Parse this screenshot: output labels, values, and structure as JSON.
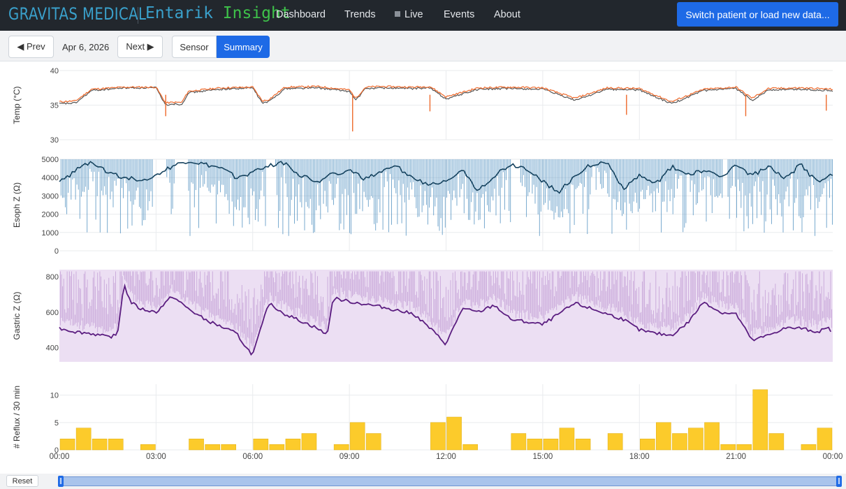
{
  "brand": {
    "name": "GRAVITAS MEDICAL",
    "product_part1": "Entarik",
    "product_part2": "Insight"
  },
  "nav": {
    "items": [
      {
        "label": "Dashboard"
      },
      {
        "label": "Trends"
      },
      {
        "label": "Live"
      },
      {
        "label": "Events"
      },
      {
        "label": "About"
      }
    ],
    "switch_button": "Switch patient or load new data..."
  },
  "toolbar": {
    "prev_label": "◀ Prev",
    "date": "Apr 6, 2026",
    "next_label": "Next ▶",
    "view_tabs": [
      {
        "label": "Sensor",
        "active": false
      },
      {
        "label": "Summary",
        "active": true
      }
    ]
  },
  "bottom": {
    "reset_label": "Reset",
    "range_start": "00:00",
    "range_end": "24:00"
  },
  "colors": {
    "temp_primary": "#ee6a2c",
    "temp_secondary": "#555555",
    "esoph_raw": "#4f8fbf",
    "esoph_avg": "#16435f",
    "gastric_raw": "#c4a1d6",
    "gastric_fill": "#ecdff3",
    "gastric_avg": "#5b1d80",
    "reflux_bar": "#fccb2b",
    "accent": "#1e6ae6"
  },
  "chart_data": [
    {
      "type": "line",
      "ylabel": "Temp (°C)",
      "ylim": [
        30,
        40
      ],
      "yticks": [
        30,
        35,
        40
      ],
      "x_unit": "hours",
      "x": [
        0,
        0.5,
        1,
        2,
        3,
        3.3,
        3.5,
        3.8,
        4,
        5,
        6,
        6.3,
        6.5,
        7,
        8,
        9,
        9.2,
        9.5,
        10,
        11,
        11.5,
        12,
        13,
        14,
        15,
        16,
        17,
        18,
        19,
        20,
        21,
        21.5,
        22,
        23,
        24
      ],
      "series": [
        {
          "values": [
            35.5,
            35.6,
            37.3,
            37.6,
            37.6,
            35.3,
            35.4,
            35.4,
            37.0,
            37.5,
            37.6,
            35.6,
            35.8,
            37.6,
            37.7,
            37.2,
            36.0,
            37.6,
            37.7,
            37.6,
            37.7,
            36.2,
            37.5,
            37.6,
            37.5,
            36.0,
            37.5,
            37.4,
            35.5,
            37.3,
            37.6,
            36.0,
            37.4,
            37.5,
            37.3
          ]
        },
        {
          "values": [
            35.2,
            35.3,
            37.1,
            37.5,
            37.5,
            35.0,
            35.2,
            35.1,
            36.8,
            37.3,
            37.5,
            35.3,
            35.5,
            37.4,
            37.5,
            37.0,
            35.7,
            37.4,
            37.5,
            37.4,
            37.5,
            35.9,
            37.3,
            37.4,
            37.3,
            35.7,
            37.3,
            37.2,
            35.2,
            37.1,
            37.4,
            35.7,
            37.2,
            37.3,
            37.1
          ]
        }
      ]
    },
    {
      "type": "line",
      "ylabel": "Esoph Z (Ω)",
      "ylim": [
        0,
        5000
      ],
      "yticks": [
        0,
        1000,
        2000,
        3000,
        4000,
        5000
      ],
      "x": [
        0,
        0.5,
        1,
        1.5,
        2,
        2.5,
        3,
        3.5,
        4,
        4.5,
        5,
        5.5,
        6,
        6.5,
        7,
        7.5,
        8,
        8.5,
        9,
        9.5,
        10,
        10.5,
        11,
        11.5,
        12,
        12.5,
        13,
        13.5,
        14,
        14.5,
        15,
        15.5,
        16,
        16.5,
        17,
        17.5,
        18,
        18.5,
        19,
        19.5,
        20,
        20.5,
        21,
        21.5,
        22,
        22.5,
        23,
        23.5,
        24
      ],
      "series": [
        {
          "values": [
            3700,
            4400,
            4900,
            4300,
            4000,
            3900,
            4100,
            4600,
            4900,
            4700,
            4500,
            4000,
            4300,
            4700,
            4800,
            4100,
            3800,
            4200,
            4400,
            3900,
            4300,
            4600,
            3900,
            3600,
            3900,
            4400,
            3300,
            4100,
            4700,
            4500,
            3800,
            3200,
            4100,
            4700,
            4800,
            3400,
            4100,
            3600,
            4600,
            4200,
            4400,
            4000,
            4700,
            4100,
            4600,
            3900,
            4700,
            3800,
            4200
          ]
        }
      ]
    },
    {
      "type": "area",
      "ylabel": "Gastric Z (Ω)",
      "ylim": [
        320,
        840
      ],
      "yticks": [
        400,
        600,
        800
      ],
      "x": [
        0,
        0.5,
        1,
        1.5,
        1.8,
        2,
        2.2,
        2.5,
        3,
        3.5,
        4,
        4.5,
        5,
        5.5,
        5.8,
        6,
        6.5,
        7,
        7.5,
        8,
        8.3,
        8.5,
        9,
        10,
        11,
        11.5,
        12,
        12.5,
        13,
        13.5,
        14,
        15,
        16,
        17,
        17.5,
        18,
        18.5,
        19,
        19.5,
        20,
        20.5,
        21,
        21.5,
        22,
        22.5,
        23,
        23.5,
        23.9,
        24
      ],
      "series": [
        {
          "values": [
            510,
            490,
            480,
            460,
            470,
            760,
            660,
            620,
            600,
            690,
            620,
            560,
            520,
            480,
            400,
            360,
            650,
            590,
            550,
            510,
            470,
            680,
            660,
            630,
            590,
            510,
            420,
            620,
            600,
            640,
            560,
            530,
            650,
            590,
            560,
            500,
            480,
            470,
            540,
            660,
            600,
            590,
            440,
            470,
            510,
            510,
            490,
            510,
            480
          ]
        }
      ]
    },
    {
      "type": "bar",
      "ylabel": "# Reflux / 30 min",
      "ylim": [
        0,
        12
      ],
      "yticks": [
        0,
        5,
        10
      ],
      "xticks": [
        "00:00",
        "03:00",
        "06:00",
        "09:00",
        "12:00",
        "15:00",
        "18:00",
        "21:00",
        "00:00"
      ],
      "bin_start_hours": [
        0,
        0.5,
        1,
        1.5,
        2,
        2.5,
        3,
        3.5,
        4,
        4.5,
        5,
        5.5,
        6,
        6.5,
        7,
        7.5,
        8,
        8.5,
        9,
        9.5,
        10,
        10.5,
        11,
        11.5,
        12,
        12.5,
        13,
        13.5,
        14,
        14.5,
        15,
        15.5,
        16,
        16.5,
        17,
        17.5,
        18,
        18.5,
        19,
        19.5,
        20,
        20.5,
        21,
        21.5,
        22,
        22.5,
        23,
        23.5
      ],
      "values": [
        2,
        4,
        2,
        2,
        0,
        1,
        0,
        0,
        2,
        1,
        1,
        0,
        2,
        1,
        2,
        3,
        0,
        1,
        5,
        3,
        0,
        0,
        0,
        5,
        6,
        1,
        0,
        0,
        3,
        2,
        2,
        4,
        2,
        0,
        3,
        0,
        2,
        5,
        3,
        4,
        5,
        1,
        1,
        11,
        3,
        0,
        1,
        4
      ]
    }
  ]
}
